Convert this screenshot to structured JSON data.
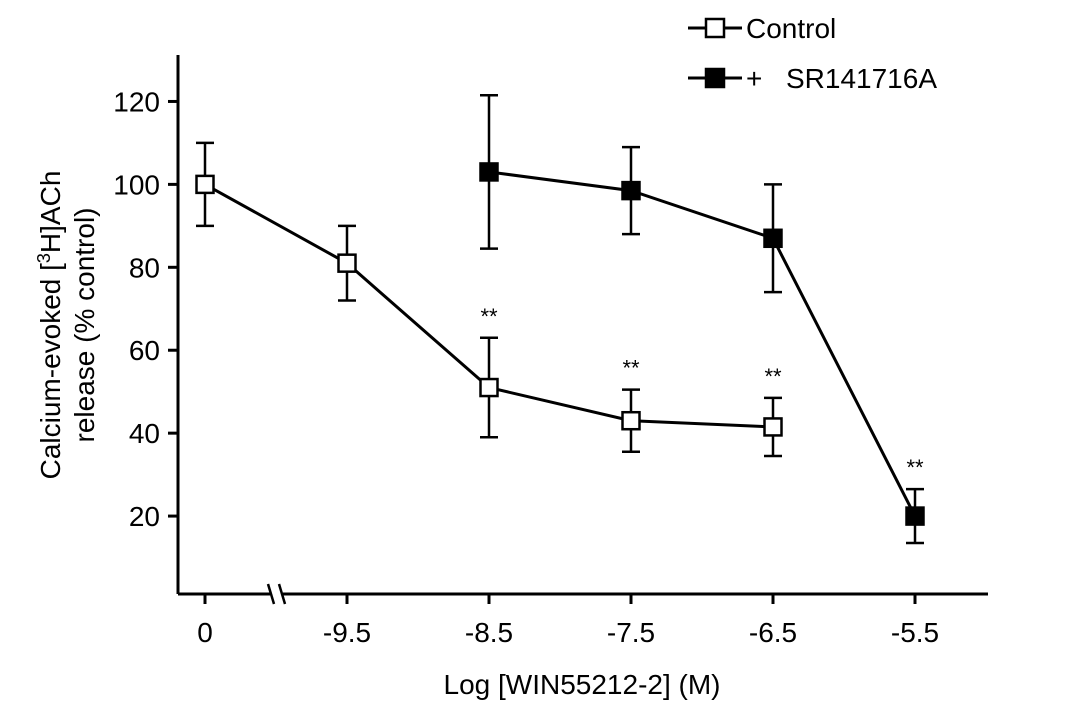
{
  "chart_data": {
    "type": "line",
    "xlabel": "Log [WIN55212-2] (M)",
    "ylabel_line1": "Calcium-evoked [",
    "ylabel_sup": "3",
    "ylabel_line1_end": "H]ACh",
    "ylabel_line2": "release (% control)",
    "categories": [
      "0",
      "-9.5",
      "-8.5",
      "-7.5",
      "-6.5",
      "-5.5"
    ],
    "x_axis_break": "between 0 and -9.5",
    "ylim": [
      0,
      130
    ],
    "yticks": [
      20,
      40,
      60,
      80,
      100,
      120
    ],
    "ytick_labels": [
      "20",
      "40",
      "60",
      "80",
      "100",
      "120"
    ],
    "series": [
      {
        "name": "Control",
        "legend_label": "Control",
        "marker": "open-square",
        "color": "#000000",
        "points": [
          {
            "x": "0",
            "y": 100,
            "err_low": 10,
            "err_high": 10,
            "sig": ""
          },
          {
            "x": "-9.5",
            "y": 81,
            "err_low": 9,
            "err_high": 9,
            "sig": ""
          },
          {
            "x": "-8.5",
            "y": 51,
            "err_low": 12,
            "err_high": 12,
            "sig": "**"
          },
          {
            "x": "-7.5",
            "y": 43,
            "err_low": 7.5,
            "err_high": 7.5,
            "sig": "**"
          },
          {
            "x": "-6.5",
            "y": 41.5,
            "err_low": 7,
            "err_high": 7,
            "sig": "**"
          }
        ]
      },
      {
        "name": "+ SR141716A",
        "legend_prefix": "+",
        "legend_label": "SR141716A",
        "marker": "filled-square",
        "color": "#000000",
        "points": [
          {
            "x": "-8.5",
            "y": 103,
            "err_low": 18.5,
            "err_high": 18.5,
            "sig": ""
          },
          {
            "x": "-7.5",
            "y": 98.5,
            "err_low": 10.5,
            "err_high": 10.5,
            "sig": ""
          },
          {
            "x": "-6.5",
            "y": 87,
            "err_low": 13,
            "err_high": 13,
            "sig": ""
          },
          {
            "x": "-5.5",
            "y": 20,
            "err_low": 6.5,
            "err_high": 6.5,
            "sig": "**"
          }
        ]
      }
    ],
    "legend_position": "top-right"
  }
}
